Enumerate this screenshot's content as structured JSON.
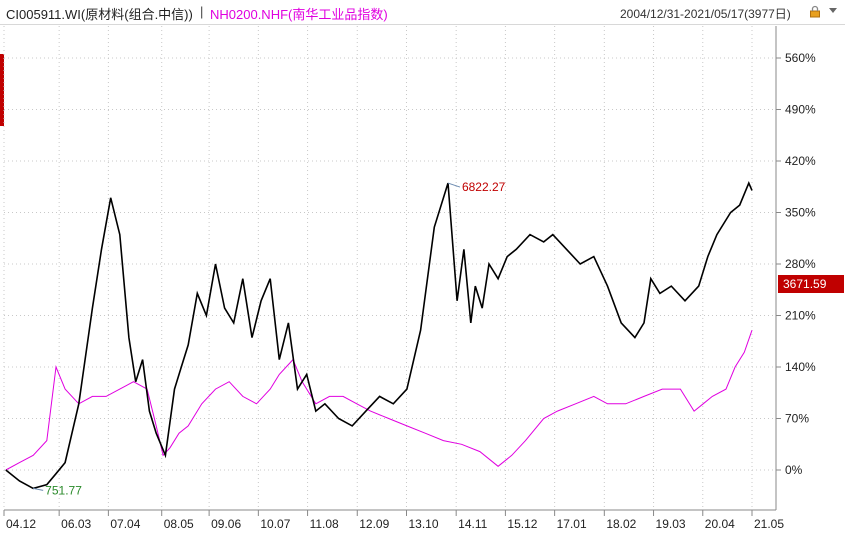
{
  "header": {
    "series_a_title": "CI005911.WI(原材料(组合.中信))",
    "separator": "|",
    "series_b_title": "NH0200.NHF(南华工业品指数)",
    "range": "2004/12/31-2021/05/17(3977日)",
    "icons": [
      "lock-icon",
      "dropdown-icon"
    ]
  },
  "colors": {
    "series_a": "#000000",
    "series_b": "#e000e0",
    "grid": "#c8c8c8",
    "last_badge": "#c00000",
    "max_label": "#c00000",
    "min_label": "#2a8a2a"
  },
  "chart_data": {
    "type": "line",
    "title": "",
    "xlabel": "",
    "ylabel": "",
    "y_unit": "%",
    "ylim": [
      -40,
      600
    ],
    "y_ticks": [
      0,
      70,
      140,
      210,
      280,
      350,
      420,
      490,
      560
    ],
    "y_tick_labels": [
      "0%",
      "70%",
      "140%",
      "210%",
      "280%",
      "350%",
      "420%",
      "490%",
      "560%"
    ],
    "x_range": [
      2004.96,
      2021.37
    ],
    "x_ticks": [
      2004.96,
      2006.17,
      2007.25,
      2008.42,
      2009.46,
      2010.54,
      2011.62,
      2012.71,
      2013.79,
      2014.88,
      2015.96,
      2017.04,
      2018.13,
      2019.21,
      2020.29,
      2021.37
    ],
    "x_tick_labels": [
      "04.12",
      "06.03",
      "07.04",
      "08.05",
      "09.06",
      "10.07",
      "11.08",
      "12.09",
      "13.10",
      "14.11",
      "15.12",
      "17.01",
      "18.02",
      "19.03",
      "20.04",
      "21.05"
    ],
    "annotations": {
      "max": "6822.27",
      "min": "751.77",
      "last": "3671.59"
    },
    "series": [
      {
        "name": "CI005911.WI(原材料(组合.中信))",
        "x": [
          2005.0,
          2005.3,
          2005.6,
          2005.9,
          2006.1,
          2006.3,
          2006.6,
          2006.9,
          2007.1,
          2007.3,
          2007.5,
          2007.7,
          2007.85,
          2008.0,
          2008.15,
          2008.3,
          2008.5,
          2008.7,
          2008.85,
          2009.0,
          2009.2,
          2009.4,
          2009.6,
          2009.8,
          2010.0,
          2010.2,
          2010.4,
          2010.6,
          2010.8,
          2011.0,
          2011.2,
          2011.4,
          2011.6,
          2011.8,
          2012.0,
          2012.3,
          2012.6,
          2012.9,
          2013.2,
          2013.5,
          2013.8,
          2014.1,
          2014.4,
          2014.7,
          2014.9,
          2015.05,
          2015.2,
          2015.3,
          2015.45,
          2015.6,
          2015.8,
          2016.0,
          2016.2,
          2016.5,
          2016.8,
          2017.0,
          2017.3,
          2017.6,
          2017.9,
          2018.2,
          2018.5,
          2018.8,
          2019.0,
          2019.15,
          2019.35,
          2019.6,
          2019.9,
          2020.2,
          2020.4,
          2020.6,
          2020.9,
          2021.1,
          2021.3,
          2021.37
        ],
        "values": [
          0,
          -15,
          -25,
          -20,
          -5,
          10,
          90,
          220,
          300,
          370,
          320,
          180,
          120,
          150,
          80,
          50,
          20,
          110,
          140,
          170,
          240,
          210,
          280,
          220,
          200,
          260,
          180,
          230,
          260,
          150,
          200,
          110,
          130,
          80,
          90,
          70,
          60,
          80,
          100,
          90,
          110,
          190,
          330,
          390,
          230,
          300,
          200,
          250,
          220,
          280,
          260,
          290,
          300,
          320,
          310,
          320,
          300,
          280,
          290,
          250,
          200,
          180,
          200,
          260,
          240,
          250,
          230,
          250,
          290,
          320,
          350,
          360,
          390,
          380
        ]
      },
      {
        "name": "NH0200.NHF(南华工业品指数)",
        "x": [
          2005.0,
          2005.3,
          2005.6,
          2005.9,
          2006.1,
          2006.3,
          2006.6,
          2006.9,
          2007.2,
          2007.5,
          2007.8,
          2008.1,
          2008.3,
          2008.45,
          2008.6,
          2008.8,
          2009.0,
          2009.3,
          2009.6,
          2009.9,
          2010.2,
          2010.5,
          2010.8,
          2011.0,
          2011.3,
          2011.5,
          2011.8,
          2012.1,
          2012.4,
          2012.7,
          2013.0,
          2013.4,
          2013.8,
          2014.2,
          2014.6,
          2015.0,
          2015.4,
          2015.8,
          2016.1,
          2016.4,
          2016.8,
          2017.1,
          2017.5,
          2017.9,
          2018.2,
          2018.6,
          2019.0,
          2019.4,
          2019.8,
          2020.1,
          2020.3,
          2020.5,
          2020.8,
          2021.0,
          2021.2,
          2021.37
        ],
        "values": [
          0,
          10,
          20,
          40,
          140,
          110,
          90,
          100,
          100,
          110,
          120,
          110,
          60,
          20,
          30,
          50,
          60,
          90,
          110,
          120,
          100,
          90,
          110,
          130,
          150,
          120,
          90,
          100,
          100,
          90,
          80,
          70,
          60,
          50,
          40,
          35,
          25,
          5,
          20,
          40,
          70,
          80,
          90,
          100,
          90,
          90,
          100,
          110,
          110,
          80,
          90,
          100,
          110,
          140,
          160,
          190
        ]
      }
    ]
  }
}
